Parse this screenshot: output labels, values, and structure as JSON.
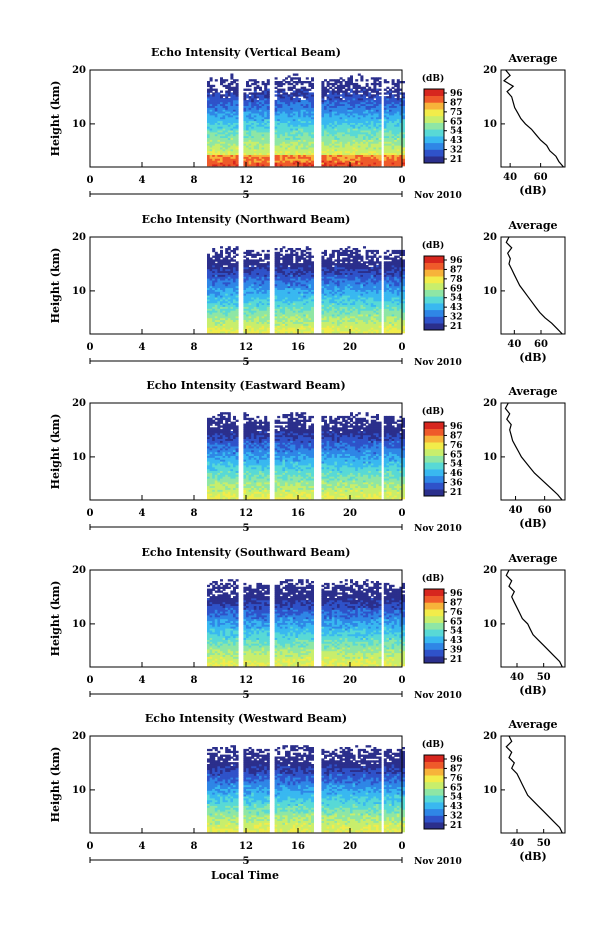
{
  "figure": {
    "xlabel": "Local Time",
    "date_label": "Nov 2010",
    "date_marker": "5",
    "profile_title": "Average",
    "profile_xlabel": "(dB)",
    "colorbar_unit": "(dB)",
    "height_ylabel": "Height (km)"
  },
  "colors": {
    "colormap": [
      "#2b2f8c",
      "#2f52c9",
      "#2f86e6",
      "#39b8f0",
      "#58d9d6",
      "#8ee6a5",
      "#c8ee6c",
      "#f2ec4a",
      "#f7b33a",
      "#ef5a2a",
      "#d7261e"
    ]
  },
  "chart_data": [
    {
      "type": "heatmap",
      "title": "Echo Intensity (Vertical Beam)",
      "xticks": [
        "0",
        "4",
        "8",
        "12",
        "16",
        "20",
        "0"
      ],
      "yticks": [
        "10",
        "20"
      ],
      "xlim": [
        0,
        24
      ],
      "ylim": [
        2,
        20
      ],
      "data_x_range": [
        9,
        24
      ],
      "colorbar_labels": [
        "96",
        "87",
        "75",
        "65",
        "54",
        "43",
        "32",
        "21"
      ],
      "profile": {
        "xticks": [
          "40",
          "60"
        ],
        "yticks": [
          "10",
          "20"
        ],
        "xlim": [
          34,
          76
        ],
        "ylim": [
          2,
          20
        ],
        "heights": [
          2,
          3,
          4,
          5,
          6,
          7,
          8,
          9,
          10,
          11,
          12,
          13,
          14,
          15,
          16,
          17,
          18,
          19,
          20
        ],
        "values": [
          75,
          72,
          70,
          66,
          64,
          60,
          57,
          54,
          50,
          47,
          45,
          43,
          42,
          41,
          38,
          42,
          36,
          40,
          37
        ]
      }
    },
    {
      "type": "heatmap",
      "title": "Echo Intensity (Northward Beam)",
      "xticks": [
        "0",
        "4",
        "8",
        "12",
        "16",
        "20",
        "0"
      ],
      "yticks": [
        "10",
        "20"
      ],
      "xlim": [
        0,
        24
      ],
      "ylim": [
        2,
        20
      ],
      "data_x_range": [
        9,
        24
      ],
      "colorbar_labels": [
        "96",
        "87",
        "78",
        "69",
        "54",
        "43",
        "32",
        "21"
      ],
      "profile": {
        "xticks": [
          "40",
          "60"
        ],
        "yticks": [
          "10",
          "20"
        ],
        "xlim": [
          30,
          78
        ],
        "ylim": [
          2,
          20
        ],
        "heights": [
          2,
          3,
          4,
          5,
          6,
          7,
          8,
          9,
          10,
          11,
          12,
          13,
          14,
          15,
          16,
          17,
          18,
          19,
          20
        ],
        "values": [
          76,
          72,
          68,
          63,
          59,
          56,
          53,
          50,
          47,
          44,
          42,
          40,
          38,
          36,
          37,
          35,
          38,
          34,
          36
        ]
      }
    },
    {
      "type": "heatmap",
      "title": "Echo Intensity (Eastward Beam)",
      "xticks": [
        "0",
        "4",
        "8",
        "12",
        "16",
        "20",
        "0"
      ],
      "yticks": [
        "10",
        "20"
      ],
      "xlim": [
        0,
        24
      ],
      "ylim": [
        2,
        20
      ],
      "data_x_range": [
        9,
        24
      ],
      "colorbar_labels": [
        "96",
        "87",
        "76",
        "65",
        "54",
        "46",
        "36",
        "21"
      ],
      "profile": {
        "xticks": [
          "40",
          "60"
        ],
        "yticks": [
          "10",
          "20"
        ],
        "xlim": [
          30,
          74
        ],
        "ylim": [
          2,
          20
        ],
        "heights": [
          2,
          3,
          4,
          5,
          6,
          7,
          8,
          9,
          10,
          11,
          12,
          13,
          14,
          15,
          16,
          17,
          18,
          19,
          20
        ],
        "values": [
          72,
          69,
          65,
          61,
          57,
          53,
          50,
          47,
          44,
          42,
          40,
          38,
          37,
          36,
          37,
          34,
          36,
          33,
          35
        ]
      }
    },
    {
      "type": "heatmap",
      "title": "Echo Intensity (Southward Beam)",
      "xticks": [
        "0",
        "4",
        "8",
        "12",
        "16",
        "20",
        "0"
      ],
      "yticks": [
        "10",
        "20"
      ],
      "xlim": [
        0,
        24
      ],
      "ylim": [
        2,
        20
      ],
      "data_x_range": [
        9,
        24
      ],
      "colorbar_labels": [
        "96",
        "87",
        "76",
        "65",
        "54",
        "43",
        "39",
        "21"
      ],
      "profile": {
        "xticks": [
          "40",
          "50"
        ],
        "yticks": [
          "10",
          "20"
        ],
        "xlim": [
          34,
          58
        ],
        "ylim": [
          2,
          20
        ],
        "heights": [
          2,
          3,
          4,
          5,
          6,
          7,
          8,
          9,
          10,
          11,
          12,
          13,
          14,
          15,
          16,
          17,
          18,
          19,
          20
        ],
        "values": [
          57,
          56,
          54,
          52,
          50,
          48,
          46,
          45,
          44,
          42,
          41,
          40,
          39,
          38,
          39,
          37,
          38,
          36,
          37
        ]
      }
    },
    {
      "type": "heatmap",
      "title": "Echo Intensity (Westward Beam)",
      "xticks": [
        "0",
        "4",
        "8",
        "12",
        "16",
        "20",
        "0"
      ],
      "yticks": [
        "10",
        "20"
      ],
      "xlim": [
        0,
        24
      ],
      "ylim": [
        2,
        20
      ],
      "data_x_range": [
        9,
        24
      ],
      "colorbar_labels": [
        "96",
        "87",
        "76",
        "65",
        "54",
        "43",
        "32",
        "21"
      ],
      "profile": {
        "xticks": [
          "40",
          "50"
        ],
        "yticks": [
          "10",
          "20"
        ],
        "xlim": [
          34,
          58
        ],
        "ylim": [
          2,
          20
        ],
        "heights": [
          2,
          3,
          4,
          5,
          6,
          7,
          8,
          9,
          10,
          11,
          12,
          13,
          14,
          15,
          16,
          17,
          18,
          19,
          20
        ],
        "values": [
          57,
          56,
          54,
          52,
          50,
          48,
          46,
          44,
          43,
          42,
          41,
          40,
          38,
          39,
          37,
          38,
          36,
          38,
          37
        ]
      }
    }
  ]
}
